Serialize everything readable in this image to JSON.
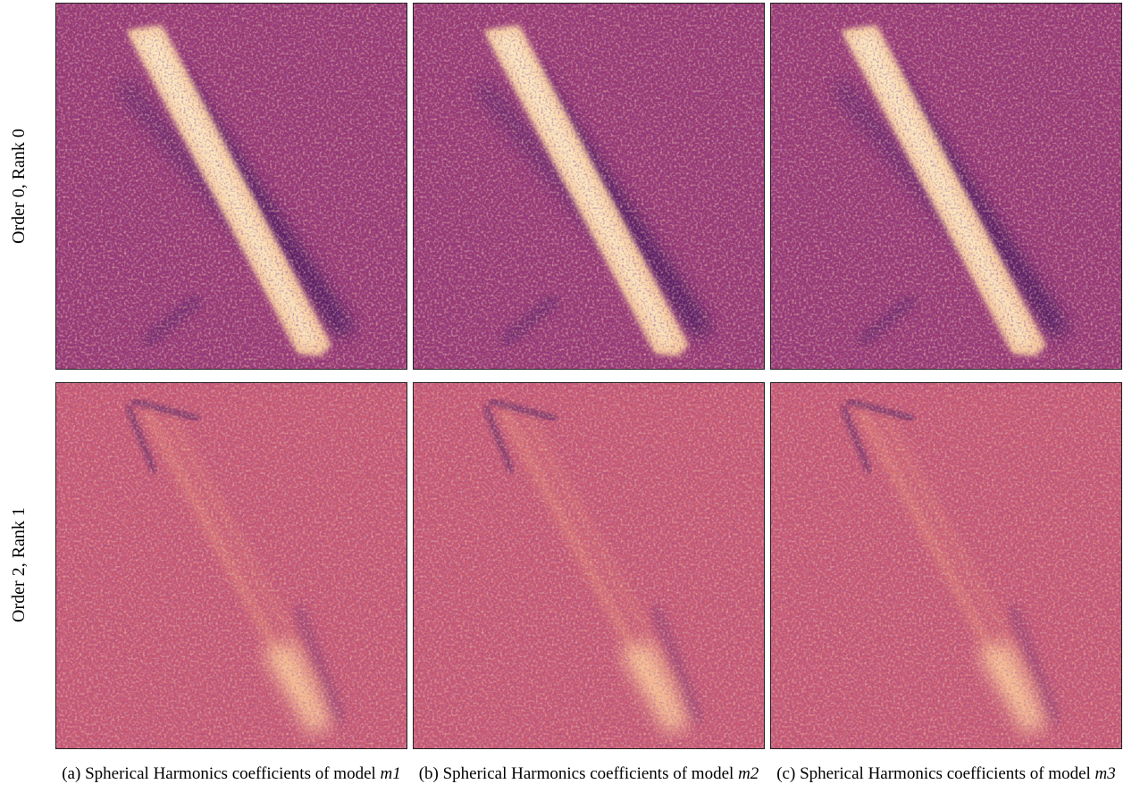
{
  "row_labels": [
    "Order 0, Rank 0",
    "Order 2, Rank 1"
  ],
  "captions": [
    {
      "text": "(a) Spherical Harmonics coefficients of model",
      "model": "m1"
    },
    {
      "text": "(b) Spherical Harmonics coefficients of model",
      "model": "m2"
    },
    {
      "text": "(c) Spherical Harmonics coefficients of model",
      "model": "m3"
    }
  ]
}
